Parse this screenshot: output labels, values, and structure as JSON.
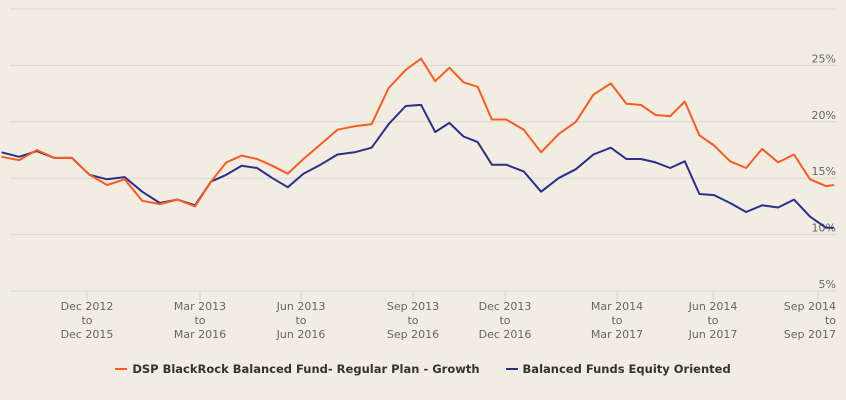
{
  "chart_data": {
    "type": "line",
    "title": "",
    "xlabel": "",
    "ylabel": "",
    "ylim": [
      5,
      30
    ],
    "y_ticks": [
      "5%",
      "10%",
      "15%",
      "20%",
      "25%"
    ],
    "y_tick_values": [
      5,
      10,
      15,
      20,
      25
    ],
    "grid": true,
    "legend_position": "bottom",
    "x_ticks": [
      {
        "date": "2012-12-01",
        "lines": [
          "Dec 2012",
          "to",
          "Dec 2015"
        ]
      },
      {
        "date": "2013-03-01",
        "lines": [
          "Mar 2013",
          "to",
          "Mar 2016"
        ]
      },
      {
        "date": "2013-06-01",
        "lines": [
          "Jun 2013",
          "to",
          "Jun 2016"
        ]
      },
      {
        "date": "2013-09-01",
        "lines": [
          "Sep 2013",
          "to",
          "Sep 2016"
        ]
      },
      {
        "date": "2013-12-01",
        "lines": [
          "Dec 2013",
          "to",
          "Dec 2016"
        ]
      },
      {
        "date": "2014-03-01",
        "lines": [
          "Mar 2014",
          "to",
          "Mar 2017"
        ]
      },
      {
        "date": "2014-06-01",
        "lines": [
          "Jun 2014",
          "to",
          "Jun 2017"
        ]
      },
      {
        "date": "2014-09-01",
        "lines": [
          "Sep 2014",
          "to",
          "Sep 2017"
        ]
      }
    ],
    "x": [
      "2012-09-24",
      "2012-10-08",
      "2012-10-22",
      "2012-11-05",
      "2012-11-19",
      "2012-12-03",
      "2012-12-17",
      "2012-12-31",
      "2013-01-14",
      "2013-01-28",
      "2013-02-11",
      "2013-02-25",
      "2013-03-11",
      "2013-03-25",
      "2013-04-08",
      "2013-04-22",
      "2013-05-06",
      "2013-05-20",
      "2013-06-03",
      "2013-06-17",
      "2013-07-01",
      "2013-07-15",
      "2013-07-29",
      "2013-08-12",
      "2013-08-26",
      "2013-09-09",
      "2013-09-23",
      "2013-10-07",
      "2013-10-21",
      "2013-11-04",
      "2013-11-18",
      "2013-12-02",
      "2013-12-16",
      "2013-12-30",
      "2014-01-13",
      "2014-01-27",
      "2014-02-10",
      "2014-02-24",
      "2014-03-10",
      "2014-03-24",
      "2014-04-07",
      "2014-04-21",
      "2014-05-05",
      "2014-05-19",
      "2014-06-02",
      "2014-06-16",
      "2014-06-30",
      "2014-07-14",
      "2014-07-28",
      "2014-08-11",
      "2014-08-25",
      "2014-09-08",
      "2014-09-15"
    ],
    "series": [
      {
        "name": "DSP BlackRock Balanced Fund- Regular Plan - Growth",
        "color": "#fd5a1e",
        "values": [
          16.9,
          16.6,
          17.5,
          16.8,
          16.8,
          15.3,
          14.4,
          14.9,
          13.0,
          12.7,
          13.1,
          12.5,
          14.7,
          16.4,
          17.0,
          16.7,
          16.1,
          15.4,
          16.7,
          18.0,
          19.3,
          19.6,
          19.8,
          23.0,
          24.6,
          25.6,
          23.6,
          24.8,
          23.5,
          23.1,
          20.2,
          20.2,
          19.3,
          17.3,
          18.9,
          20.0,
          22.4,
          23.4,
          21.6,
          21.5,
          20.6,
          20.5,
          21.8,
          18.8,
          17.9,
          16.5,
          15.9,
          17.6,
          16.4,
          17.1,
          14.9,
          14.3,
          14.4
        ]
      },
      {
        "name": "Balanced Funds Equity Oriented",
        "color": "#2b2e8c",
        "values": [
          17.3,
          16.9,
          17.4,
          16.8,
          16.8,
          15.3,
          14.9,
          15.1,
          13.8,
          12.8,
          13.1,
          12.6,
          14.7,
          15.3,
          16.1,
          15.9,
          15.0,
          14.2,
          15.4,
          16.2,
          17.1,
          17.3,
          17.7,
          19.8,
          21.4,
          21.5,
          19.1,
          19.9,
          18.7,
          18.2,
          16.2,
          16.2,
          15.6,
          13.8,
          15.0,
          15.8,
          17.1,
          17.7,
          16.7,
          16.7,
          16.4,
          15.9,
          16.5,
          13.6,
          13.5,
          12.8,
          12.0,
          12.6,
          12.4,
          13.1,
          11.6,
          10.6,
          10.6
        ]
      }
    ]
  }
}
